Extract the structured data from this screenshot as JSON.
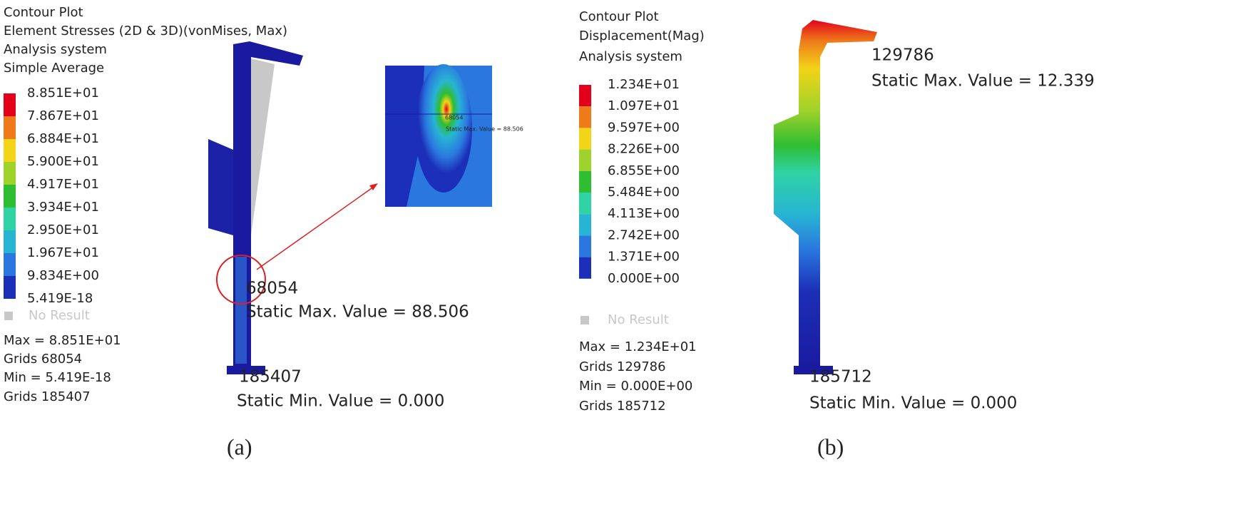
{
  "panels": [
    {
      "header": [
        "Contour Plot",
        "Element Stresses (2D & 3D)(vonMises, Max)",
        "Analysis system",
        "Simple Average"
      ],
      "legend": {
        "labels": [
          "8.851E+01",
          "7.867E+01",
          "6.884E+01",
          "5.900E+01",
          "4.917E+01",
          "3.934E+01",
          "2.950E+01",
          "1.967E+01",
          "9.834E+00",
          "5.419E-18"
        ],
        "colors": [
          "#e3001b",
          "#ee7a1a",
          "#f2d418",
          "#9fd22a",
          "#2fbd32",
          "#2fd3a4",
          "#27b5d3",
          "#2a78df",
          "#1c2fb8"
        ]
      },
      "no_result": "No Result",
      "stats": [
        "Max = 8.851E+01",
        "Grids 68054",
        "Min = 5.419E-18",
        "Grids 185407"
      ],
      "max_node": "68054",
      "max_text": "Static Max. Value =  88.506",
      "min_node": "185407",
      "min_text": "Static Min. Value =  0.000",
      "inset": {
        "node": "68054",
        "text": "Static Max. Value =  88.506"
      },
      "caption": "(a)"
    },
    {
      "header": [
        "Contour Plot",
        "Displacement(Mag)",
        "Analysis system"
      ],
      "legend": {
        "labels": [
          "1.234E+01",
          "1.097E+01",
          "9.597E+00",
          "8.226E+00",
          "6.855E+00",
          "5.484E+00",
          "4.113E+00",
          "2.742E+00",
          "1.371E+00",
          "0.000E+00"
        ],
        "colors": [
          "#e3001b",
          "#ee7a1a",
          "#f2d418",
          "#9fd22a",
          "#2fbd32",
          "#2fd3a4",
          "#27b5d3",
          "#2a78df",
          "#1c2fb8"
        ]
      },
      "no_result": "No Result",
      "stats": [
        "Max = 1.234E+01",
        "Grids 129786",
        "Min = 0.000E+00",
        "Grids 185712"
      ],
      "max_node": "129786",
      "max_text": "Static Max. Value =  12.339",
      "min_node": "185712",
      "min_text": "Static Min. Value =  0.000",
      "caption": "(b)"
    }
  ]
}
